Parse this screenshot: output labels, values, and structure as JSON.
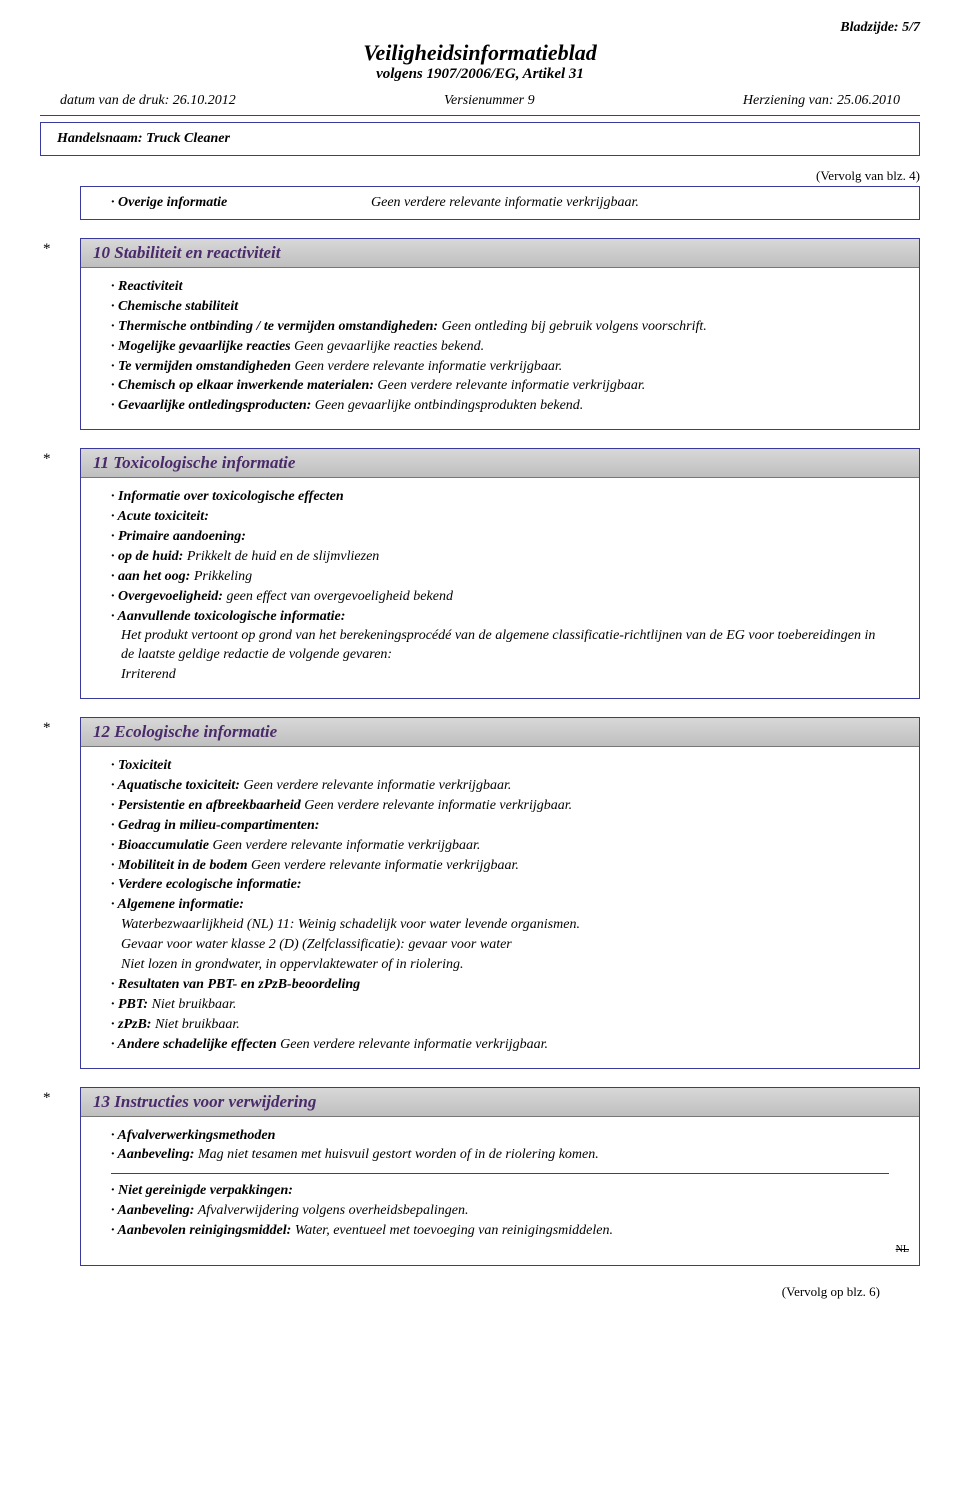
{
  "page_number": "Bladzijde: 5/7",
  "doc_title": "Veiligheidsinformatieblad",
  "doc_subtitle": "volgens 1907/2006/EG, Artikel 31",
  "meta": {
    "print_date": "datum van de druk: 26.10.2012",
    "version": "Versienummer 9",
    "revision": "Herziening van: 25.06.2010"
  },
  "trade_name_label": "Handelsnaam: Truck Cleaner",
  "cont_prev": "(Vervolg van blz. 4)",
  "overige": {
    "label": "· Overige informatie",
    "value": "Geen verdere relevante informatie verkrijgbaar."
  },
  "sections": {
    "s10": {
      "star": "*",
      "title": "10 Stabiliteit en reactiviteit",
      "items": [
        {
          "b": "· Reactiviteit",
          "t": ""
        },
        {
          "b": "· Chemische stabiliteit",
          "t": ""
        },
        {
          "b": "· Thermische ontbinding / te vermijden omstandigheden:",
          "t": " Geen ontleding bij gebruik volgens voorschrift."
        },
        {
          "b": "· Mogelijke gevaarlijke reacties",
          "t": " Geen gevaarlijke reacties bekend."
        },
        {
          "b": "· Te vermijden omstandigheden",
          "t": " Geen verdere relevante informatie verkrijgbaar."
        },
        {
          "b": "· Chemisch op elkaar inwerkende materialen:",
          "t": " Geen verdere relevante informatie verkrijgbaar."
        },
        {
          "b": "· Gevaarlijke ontledingsproducten:",
          "t": " Geen gevaarlijke ontbindingsprodukten bekend."
        }
      ]
    },
    "s11": {
      "star": "*",
      "title": "11 Toxicologische informatie",
      "items": [
        {
          "b": "· Informatie over toxicologische effecten",
          "t": ""
        },
        {
          "b": "· Acute toxiciteit:",
          "t": ""
        },
        {
          "b": "· Primaire aandoening:",
          "t": ""
        },
        {
          "b": "· op de huid:",
          "t": " Prikkelt de huid en de slijmvliezen"
        },
        {
          "b": "· aan het oog:",
          "t": " Prikkeling"
        },
        {
          "b": "· Overgevoeligheid:",
          "t": " geen effect van overgevoeligheid bekend"
        },
        {
          "b": "· Aanvullende toxicologische informatie:",
          "t": ""
        }
      ],
      "para1": "Het produkt vertoont op grond van het berekeningsprocédé van de algemene classificatie-richtlijnen van de EG voor toebereidingen in de laatste geldige redactie de volgende gevaren:",
      "para2": "Irriterend"
    },
    "s12": {
      "star": "*",
      "title": "12 Ecologische informatie",
      "items_top": [
        {
          "b": "· Toxiciteit",
          "t": ""
        },
        {
          "b": "· Aquatische toxiciteit:",
          "t": " Geen verdere relevante informatie verkrijgbaar."
        },
        {
          "b": "· Persistentie en afbreekbaarheid",
          "t": " Geen verdere relevante informatie verkrijgbaar."
        },
        {
          "b": "· Gedrag in milieu-compartimenten:",
          "t": ""
        },
        {
          "b": "· Bioaccumulatie",
          "t": " Geen verdere relevante informatie verkrijgbaar."
        },
        {
          "b": "· Mobiliteit in de bodem",
          "t": " Geen verdere relevante informatie verkrijgbaar."
        },
        {
          "b": "· Verdere ecologische informatie:",
          "t": ""
        },
        {
          "b": "· Algemene informatie:",
          "t": ""
        }
      ],
      "para_lines": [
        "Waterbezwaarlijkheid (NL) 11: Weinig schadelijk voor water levende organismen.",
        "Gevaar voor water klasse 2 (D) (Zelfclassificatie): gevaar voor water",
        "Niet lozen in grondwater, in oppervlaktewater of in riolering."
      ],
      "items_bottom": [
        {
          "b": "· Resultaten van PBT- en zPzB-beoordeling",
          "t": ""
        },
        {
          "b": "· PBT:",
          "t": " Niet bruikbaar."
        },
        {
          "b": "· zPzB:",
          "t": " Niet bruikbaar."
        },
        {
          "b": "· Andere schadelijke effecten",
          "t": " Geen verdere relevante informatie verkrijgbaar."
        }
      ]
    },
    "s13": {
      "star": "*",
      "title": "13 Instructies voor verwijdering",
      "group1": [
        {
          "b": "· Afvalverwerkingsmethoden",
          "t": ""
        },
        {
          "b": "· Aanbeveling:",
          "t": " Mag niet tesamen met huisvuil gestort worden of in de riolering komen."
        }
      ],
      "group2": [
        {
          "b": "· Niet gereinigde verpakkingen:",
          "t": ""
        },
        {
          "b": "· Aanbeveling:",
          "t": " Afvalverwijdering volgens overheidsbepalingen."
        },
        {
          "b": "· Aanbevolen reinigingsmiddel:",
          "t": " Water, eventueel met toevoeging van reinigingsmiddelen."
        }
      ],
      "nl": "NL"
    }
  },
  "cont_next": "(Vervolg op blz. 6)"
}
